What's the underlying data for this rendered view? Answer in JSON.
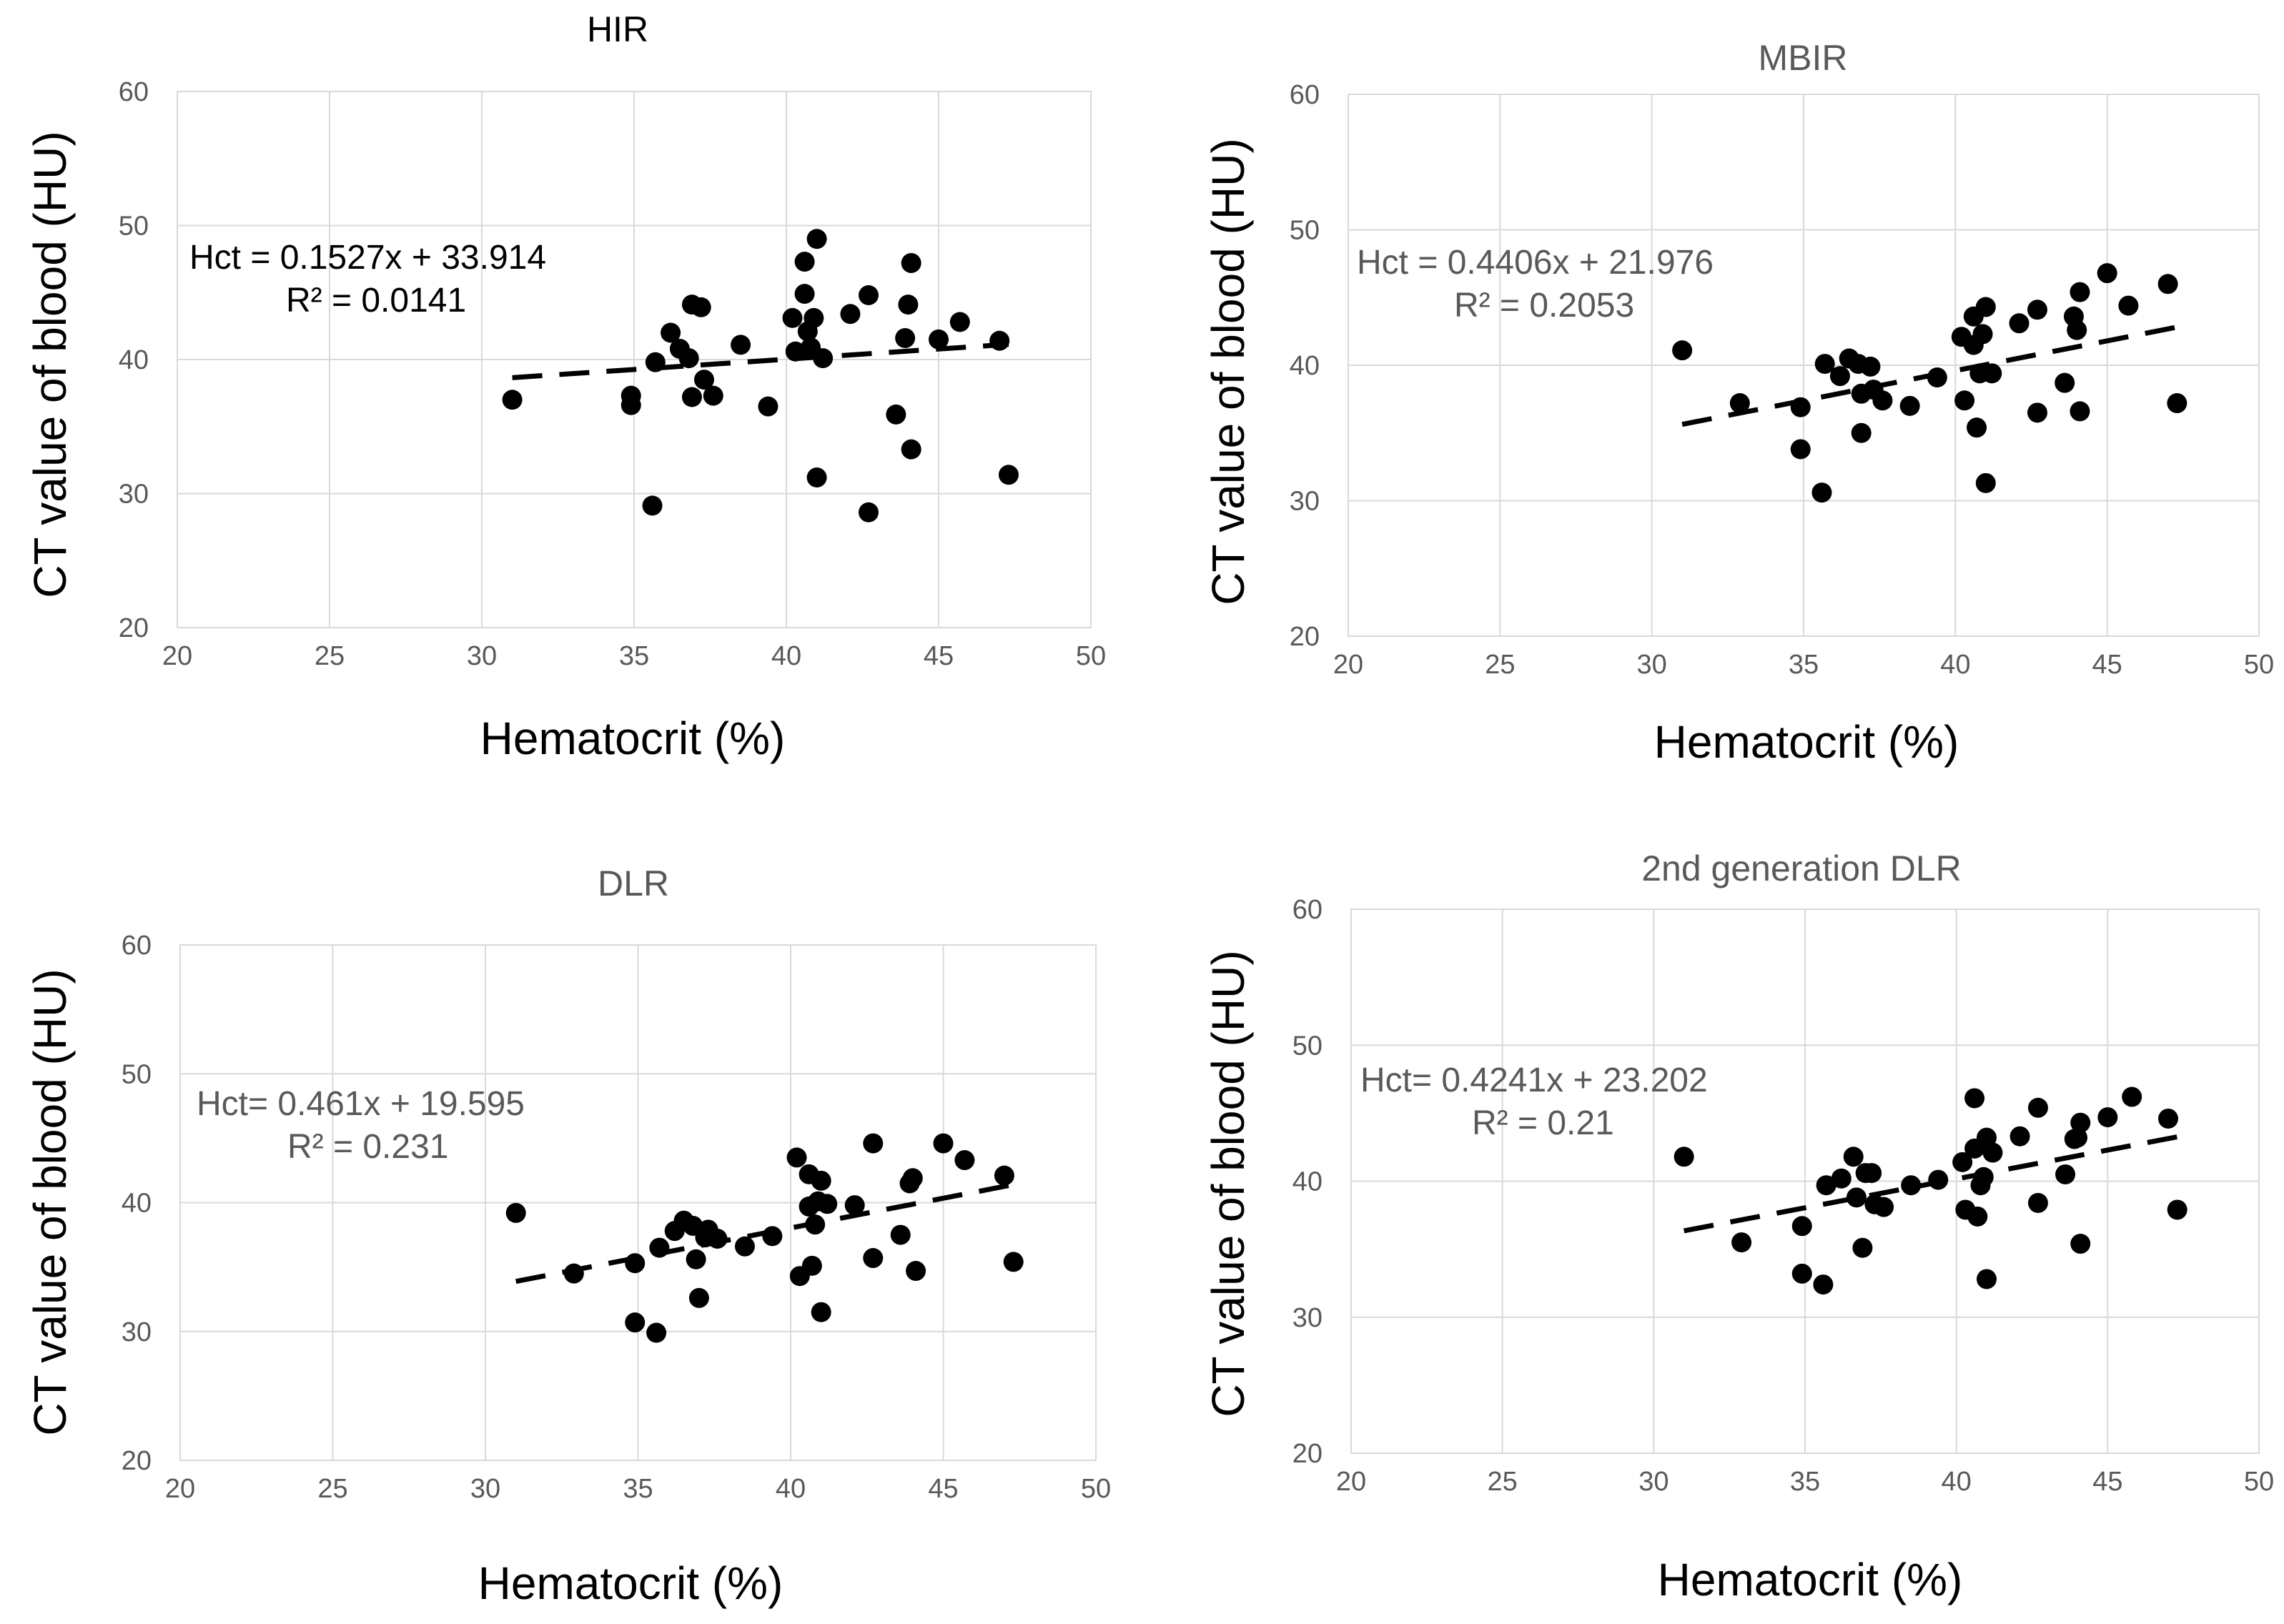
{
  "chart_data": [
    {
      "type": "scatter",
      "title": "HIR",
      "title_color": "#000000",
      "xlabel": "Hematocrit (%)",
      "ylabel": "CT value of blood (HU)",
      "xlim": [
        20,
        50
      ],
      "ylim": [
        20,
        60
      ],
      "xticks": [
        20,
        25,
        30,
        35,
        40,
        45,
        50
      ],
      "yticks": [
        20,
        30,
        40,
        50,
        60
      ],
      "grid": true,
      "equation": "Hct = 0.1527x + 33.914",
      "r_squared": "R² = 0.0141",
      "equation_color": "#000000",
      "trendline": {
        "slope": 0.1527,
        "intercept": 33.914,
        "x_range": [
          31,
          47.3
        ]
      },
      "points": [
        [
          31,
          37
        ],
        [
          34.9,
          37.3
        ],
        [
          34.9,
          36.6
        ],
        [
          35.6,
          29.1
        ],
        [
          35.7,
          39.8
        ],
        [
          36.2,
          42
        ],
        [
          36.5,
          40.8
        ],
        [
          36.8,
          40.1
        ],
        [
          36.9,
          44.1
        ],
        [
          36.9,
          37.2
        ],
        [
          37.2,
          43.9
        ],
        [
          37.3,
          38.5
        ],
        [
          37.6,
          37.3
        ],
        [
          38.5,
          41.1
        ],
        [
          39.4,
          36.5
        ],
        [
          40.2,
          43.1
        ],
        [
          40.3,
          40.6
        ],
        [
          40.6,
          47.3
        ],
        [
          40.6,
          44.9
        ],
        [
          40.7,
          42.1
        ],
        [
          40.8,
          40.9
        ],
        [
          40.9,
          43.1
        ],
        [
          41,
          49
        ],
        [
          41,
          31.2
        ],
        [
          41.2,
          40.1
        ],
        [
          42.1,
          43.4
        ],
        [
          42.7,
          44.8
        ],
        [
          42.7,
          28.6
        ],
        [
          43.6,
          35.9
        ],
        [
          43.9,
          41.6
        ],
        [
          44,
          44.1
        ],
        [
          44.1,
          47.2
        ],
        [
          44.1,
          33.3
        ],
        [
          45,
          41.5
        ],
        [
          45.7,
          42.8
        ],
        [
          47,
          41.4
        ],
        [
          47.3,
          31.4
        ]
      ]
    },
    {
      "type": "scatter",
      "title": "MBIR",
      "title_color": "#595959",
      "xlabel": "Hematocrit (%)",
      "ylabel": "CT value of blood (HU)",
      "xlim": [
        20,
        50
      ],
      "ylim": [
        20,
        60
      ],
      "xticks": [
        20,
        25,
        30,
        35,
        40,
        45,
        50
      ],
      "yticks": [
        20,
        30,
        40,
        50,
        60
      ],
      "grid": true,
      "equation": "Hct = 0.4406x + 21.976",
      "r_squared": "R² = 0.2053",
      "equation_color": "#595959",
      "trendline": {
        "slope": 0.4406,
        "intercept": 21.976,
        "x_range": [
          31,
          47.3
        ]
      },
      "points": [
        [
          31,
          41.1
        ],
        [
          32.9,
          37.2
        ],
        [
          34.9,
          36.9
        ],
        [
          34.9,
          33.8
        ],
        [
          35.6,
          30.6
        ],
        [
          35.7,
          40.1
        ],
        [
          36.2,
          39.2
        ],
        [
          36.5,
          40.5
        ],
        [
          36.8,
          40.1
        ],
        [
          36.9,
          37.9
        ],
        [
          36.9,
          35
        ],
        [
          37.2,
          39.9
        ],
        [
          37.3,
          38.2
        ],
        [
          37.6,
          37.4
        ],
        [
          38.5,
          37
        ],
        [
          39.4,
          39.1
        ],
        [
          40.2,
          42.1
        ],
        [
          40.3,
          37.4
        ],
        [
          40.6,
          43.6
        ],
        [
          40.6,
          41.5
        ],
        [
          40.7,
          35.4
        ],
        [
          40.8,
          39.4
        ],
        [
          40.9,
          42.3
        ],
        [
          41,
          44.3
        ],
        [
          41,
          31.3
        ],
        [
          41.2,
          39.4
        ],
        [
          42.1,
          43.1
        ],
        [
          42.7,
          44.1
        ],
        [
          42.7,
          36.5
        ],
        [
          43.6,
          38.7
        ],
        [
          43.9,
          43.6
        ],
        [
          44,
          42.6
        ],
        [
          44.1,
          45.4
        ],
        [
          44.1,
          36.6
        ],
        [
          45,
          46.8
        ],
        [
          45.7,
          44.4
        ],
        [
          47,
          46
        ],
        [
          47.3,
          37.2
        ]
      ]
    },
    {
      "type": "scatter",
      "title": "DLR",
      "title_color": "#595959",
      "xlabel": "Hematocrit (%)",
      "ylabel": "CT value of blood (HU)",
      "xlim": [
        20,
        50
      ],
      "ylim": [
        20,
        60
      ],
      "xticks": [
        20,
        25,
        30,
        35,
        40,
        45,
        50
      ],
      "yticks": [
        20,
        30,
        40,
        50,
        60
      ],
      "grid": true,
      "equation": "Hct= 0.461x + 19.595",
      "r_squared": "R² = 0.231",
      "equation_color": "#595959",
      "trendline": {
        "slope": 0.461,
        "intercept": 19.595,
        "x_range": [
          31,
          47.3
        ]
      },
      "points": [
        [
          31,
          39.2
        ],
        [
          32.9,
          34.5
        ],
        [
          34.9,
          35.3
        ],
        [
          34.9,
          30.7
        ],
        [
          35.6,
          29.9
        ],
        [
          35.7,
          36.5
        ],
        [
          36.2,
          37.8
        ],
        [
          36.5,
          38.6
        ],
        [
          36.8,
          38.2
        ],
        [
          36.9,
          35.6
        ],
        [
          37,
          32.6
        ],
        [
          37.2,
          37.3
        ],
        [
          37.3,
          37.9
        ],
        [
          37.6,
          37.2
        ],
        [
          38.5,
          36.6
        ],
        [
          39.4,
          37.4
        ],
        [
          40.2,
          43.5
        ],
        [
          40.3,
          34.3
        ],
        [
          40.6,
          42.2
        ],
        [
          40.6,
          39.7
        ],
        [
          40.7,
          35.1
        ],
        [
          40.8,
          38.3
        ],
        [
          40.9,
          40.1
        ],
        [
          41,
          41.7
        ],
        [
          41,
          31.5
        ],
        [
          41.2,
          39.9
        ],
        [
          42.1,
          39.8
        ],
        [
          42.7,
          44.6
        ],
        [
          42.7,
          35.7
        ],
        [
          43.6,
          37.5
        ],
        [
          43.9,
          41.5
        ],
        [
          44,
          41.9
        ],
        [
          44.1,
          34.7
        ],
        [
          45,
          44.6
        ],
        [
          45.7,
          43.3
        ],
        [
          47,
          42.1
        ],
        [
          47.3,
          35.4
        ]
      ]
    },
    {
      "type": "scatter",
      "title": "2nd generation DLR",
      "title_color": "#595959",
      "xlabel": "Hematocrit (%)",
      "ylabel": "CT value of blood (HU)",
      "xlim": [
        20,
        50
      ],
      "ylim": [
        20,
        60
      ],
      "xticks": [
        20,
        25,
        30,
        35,
        40,
        45,
        50
      ],
      "yticks": [
        20,
        30,
        40,
        50,
        60
      ],
      "grid": true,
      "equation": "Hct= 0.4241x + 23.202",
      "r_squared": "R² = 0.21",
      "equation_color": "#595959",
      "trendline": {
        "slope": 0.4241,
        "intercept": 23.202,
        "x_range": [
          31,
          47.3
        ]
      },
      "points": [
        [
          31,
          41.8
        ],
        [
          32.9,
          35.5
        ],
        [
          34.9,
          36.7
        ],
        [
          34.9,
          33.2
        ],
        [
          35.6,
          32.4
        ],
        [
          35.7,
          39.7
        ],
        [
          36.2,
          40.2
        ],
        [
          36.6,
          41.8
        ],
        [
          36.7,
          38.8
        ],
        [
          36.9,
          35.1
        ],
        [
          37,
          40.6
        ],
        [
          37.2,
          40.6
        ],
        [
          37.3,
          38.3
        ],
        [
          37.6,
          38.1
        ],
        [
          38.5,
          39.7
        ],
        [
          39.4,
          40.1
        ],
        [
          40.2,
          41.4
        ],
        [
          40.3,
          37.9
        ],
        [
          40.6,
          46.1
        ],
        [
          40.6,
          42.4
        ],
        [
          40.7,
          37.4
        ],
        [
          40.8,
          39.7
        ],
        [
          40.9,
          40.3
        ],
        [
          41,
          43.2
        ],
        [
          41,
          32.8
        ],
        [
          41.2,
          42.1
        ],
        [
          42.1,
          43.3
        ],
        [
          42.7,
          45.4
        ],
        [
          42.7,
          38.4
        ],
        [
          43.6,
          40.5
        ],
        [
          43.9,
          43.1
        ],
        [
          44,
          43.2
        ],
        [
          44.1,
          44.3
        ],
        [
          44.1,
          35.4
        ],
        [
          45,
          44.7
        ],
        [
          45.8,
          46.2
        ],
        [
          47,
          44.6
        ],
        [
          47.3,
          37.9
        ]
      ]
    }
  ]
}
